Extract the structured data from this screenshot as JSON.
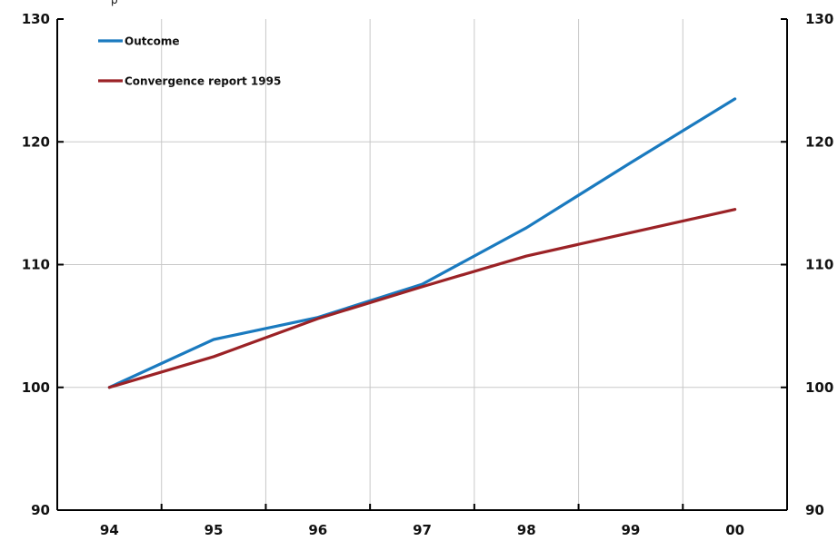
{
  "top_fragment": "p",
  "chart_data": {
    "type": "line",
    "title": "",
    "xlabel": "",
    "ylabel": "",
    "categories": [
      "94",
      "95",
      "96",
      "97",
      "98",
      "99",
      "00"
    ],
    "ylim": [
      90,
      130
    ],
    "yticks": [
      90,
      100,
      110,
      120,
      130
    ],
    "y_axis_right": true,
    "grid": "vertical",
    "legend_position": "top-left",
    "series": [
      {
        "name": "Outcome",
        "color": "#1a7abf",
        "values": [
          100,
          103.9,
          105.7,
          108.4,
          113.0,
          118.3,
          123.5
        ]
      },
      {
        "name": "Convergence report 1995",
        "color": "#9b2226",
        "values": [
          100,
          102.5,
          105.6,
          108.2,
          110.7,
          112.6,
          114.5
        ]
      }
    ]
  }
}
